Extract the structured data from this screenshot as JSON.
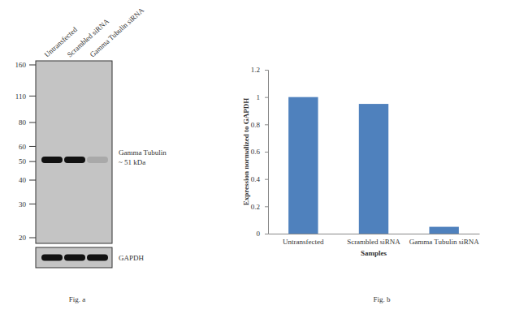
{
  "chart_data": {
    "type": "bar",
    "caption": "Fig. b",
    "categories": [
      "Untransfected",
      "Scrambled siRNA",
      "Gamma Tubulin siRNA"
    ],
    "values": [
      1,
      0.95,
      0.05
    ],
    "color": "#4f81bd",
    "x_label": "Samples",
    "y_label": "Expression  normalized to GAPDH",
    "ylim": [
      0,
      1.2
    ],
    "yticks": [
      0,
      0.2,
      0.4,
      0.6,
      0.8,
      1,
      1.2
    ],
    "grid": false
  },
  "blot": {
    "caption": "Fig. a",
    "lanes": [
      "Untransfected",
      "Scrambled siRNA",
      "Gamma Tubulin siRNA"
    ],
    "markers": [
      160,
      110,
      80,
      60,
      50,
      40,
      30,
      20
    ],
    "bands": [
      {
        "label": "Gamma Tubulin",
        "size_label": "~ 51 kDa",
        "mw": 51,
        "intensity": [
          1,
          1,
          0.15
        ]
      }
    ],
    "loading_control": {
      "label": "GAPDH",
      "intensity": [
        1,
        1,
        1
      ]
    }
  }
}
